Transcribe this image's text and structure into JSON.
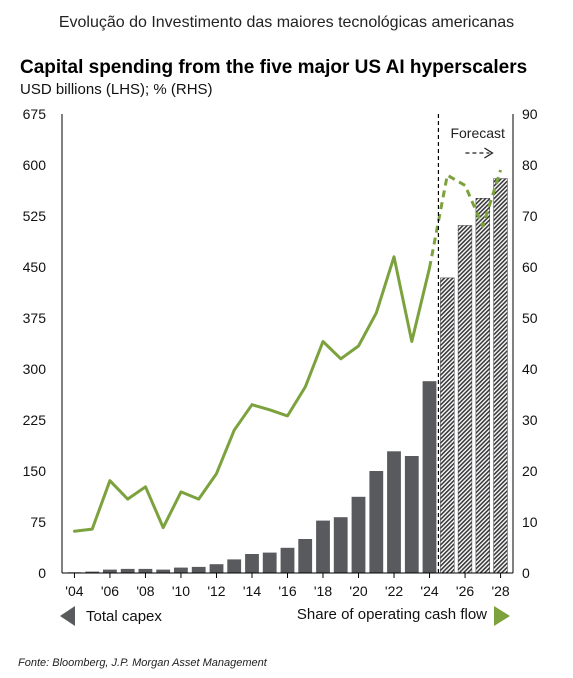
{
  "page_heading": "Evolução do Investimento das maiores tecnológicas americanas",
  "source_note": "Fonte: Bloomberg, J.P. Morgan Asset Management",
  "colors": {
    "bar": "#595a5d",
    "line": "#7ca23e",
    "axis": "#000000"
  },
  "chart_data": {
    "type": "bar",
    "title": "Capital spending from the five major US AI hyperscalers",
    "subtitle": "USD billions (LHS); % (RHS)",
    "annotation": "Forecast",
    "forecast_from": 2025,
    "years": [
      2004,
      2005,
      2006,
      2007,
      2008,
      2009,
      2010,
      2011,
      2012,
      2013,
      2014,
      2015,
      2016,
      2017,
      2018,
      2019,
      2020,
      2021,
      2022,
      2023,
      2024,
      2025,
      2026,
      2027,
      2028
    ],
    "x_tick_labels": [
      "'04",
      "'06",
      "'08",
      "'10",
      "'12",
      "'14",
      "'16",
      "'18",
      "'20",
      "'22",
      "'24",
      "'26",
      "'28"
    ],
    "x_tick_years": [
      2004,
      2006,
      2008,
      2010,
      2012,
      2014,
      2016,
      2018,
      2020,
      2022,
      2024,
      2026,
      2028
    ],
    "y_left_ticks": [
      0,
      75,
      150,
      225,
      300,
      375,
      450,
      525,
      600,
      675
    ],
    "y_right_ticks": [
      0,
      10,
      20,
      30,
      40,
      50,
      60,
      70,
      80,
      90
    ],
    "ylim_left": [
      0,
      675
    ],
    "ylim_right": [
      0,
      90
    ],
    "series": [
      {
        "name": "Total capex",
        "axis": "left",
        "values": [
          1,
          2,
          5,
          6,
          6,
          5,
          8,
          9,
          13,
          20,
          28,
          30,
          37,
          50,
          77,
          82,
          112,
          150,
          179,
          172,
          282,
          434,
          511,
          551,
          580
        ]
      },
      {
        "name": "Share of operating cash flow",
        "axis": "right",
        "values": [
          8.2,
          8.6,
          18.1,
          14.5,
          16.9,
          8.9,
          15.9,
          14.5,
          19.5,
          28,
          33,
          32,
          30.8,
          36.5,
          45.4,
          42,
          44.5,
          51,
          62,
          45.4,
          59.8,
          78,
          76,
          68,
          79
        ]
      }
    ]
  }
}
